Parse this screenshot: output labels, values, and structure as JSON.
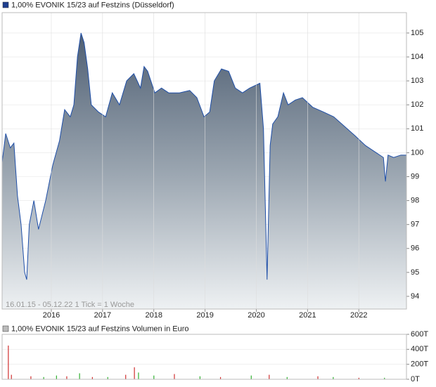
{
  "charts": [
    {
      "type": "area",
      "title": "1,00% EVONIK 15/23 auf Festzins (Düsseldorf)",
      "annotation": "16.01.15 - 05.12.22   1 Tick = 1 Woche",
      "x": [
        2015.04,
        2015.11,
        2015.2,
        2015.27,
        2015.34,
        2015.41,
        2015.48,
        2015.52,
        2015.57,
        2015.66,
        2015.75,
        2015.89,
        2016.03,
        2016.16,
        2016.26,
        2016.37,
        2016.44,
        2016.51,
        2016.58,
        2016.64,
        2016.71,
        2016.78,
        2016.92,
        2017.06,
        2017.19,
        2017.33,
        2017.47,
        2017.61,
        2017.74,
        2017.81,
        2017.88,
        2018.02,
        2018.15,
        2018.29,
        2018.5,
        2018.7,
        2018.84,
        2018.98,
        2019.09,
        2019.18,
        2019.32,
        2019.46,
        2019.59,
        2019.73,
        2019.87,
        2020.07,
        2020.14,
        2020.21,
        2020.27,
        2020.32,
        2020.42,
        2020.53,
        2020.62,
        2020.76,
        2020.9,
        2021.1,
        2021.31,
        2021.51,
        2021.72,
        2021.93,
        2022.13,
        2022.34,
        2022.48,
        2022.52,
        2022.57,
        2022.68,
        2022.82,
        2022.93
      ],
      "series": [
        {
          "name": "1,00% EVONIK 15/23 auf Festzins",
          "color": "#1f4fa8",
          "values": [
            99.6,
            100.8,
            100.2,
            100.4,
            98.2,
            97.0,
            95.0,
            94.7,
            97.0,
            98.0,
            96.8,
            98.0,
            99.5,
            100.5,
            101.8,
            101.5,
            102.0,
            104.0,
            105.0,
            104.6,
            103.5,
            102.0,
            101.7,
            101.5,
            102.5,
            102.0,
            103.0,
            103.3,
            102.7,
            103.6,
            103.4,
            102.5,
            102.7,
            102.5,
            102.5,
            102.6,
            102.3,
            101.5,
            101.7,
            103.0,
            103.5,
            103.4,
            102.7,
            102.5,
            102.7,
            102.9,
            101.0,
            94.7,
            100.3,
            101.2,
            101.5,
            102.5,
            102.0,
            102.2,
            102.3,
            101.9,
            101.7,
            101.5,
            101.1,
            100.7,
            100.3,
            100.0,
            99.8,
            98.8,
            99.9,
            99.8,
            99.9,
            99.9
          ]
        }
      ],
      "xlim": [
        2015.04,
        2022.93
      ],
      "xticks": [
        2016,
        2017,
        2018,
        2019,
        2020,
        2021,
        2022
      ],
      "ylim": [
        93.47,
        105.85
      ],
      "yticks": [
        94,
        95,
        96,
        97,
        98,
        99,
        100,
        101,
        102,
        103,
        104,
        105
      ],
      "grid": true
    },
    {
      "type": "bar",
      "title": "1,00% EVONIK 15/23 auf Festzins Volumen in Euro",
      "x": [
        2015.16,
        2015.22,
        2015.6,
        2015.85,
        2016.1,
        2016.3,
        2016.55,
        2016.8,
        2017.1,
        2017.45,
        2017.62,
        2017.7,
        2018.0,
        2018.4,
        2018.9,
        2019.3,
        2019.9,
        2020.25,
        2020.6,
        2021.2,
        2021.5,
        2022.0,
        2022.5
      ],
      "values": [
        450000,
        60000,
        40000,
        30000,
        50000,
        40000,
        80000,
        30000,
        30000,
        60000,
        160000,
        90000,
        50000,
        70000,
        40000,
        30000,
        50000,
        60000,
        30000,
        40000,
        30000,
        20000,
        20000
      ],
      "colors": [
        "#d03030",
        "#d03030",
        "#d03030",
        "#30b030",
        "#30b030",
        "#d03030",
        "#30b030",
        "#d03030",
        "#30b030",
        "#d03030",
        "#d03030",
        "#30b030",
        "#30b030",
        "#d03030",
        "#30b030",
        "#d03030",
        "#30b030",
        "#d03030",
        "#30b030",
        "#d03030",
        "#30b030",
        "#d03030",
        "#30b030"
      ],
      "xlim": [
        2015.04,
        2022.93
      ],
      "ylim": [
        0,
        600000
      ],
      "yticks": [
        {
          "value": 0,
          "label": "0T"
        },
        {
          "value": 200000,
          "label": "200T"
        },
        {
          "value": 400000,
          "label": "400T"
        },
        {
          "value": 600000,
          "label": "600T"
        }
      ]
    }
  ]
}
